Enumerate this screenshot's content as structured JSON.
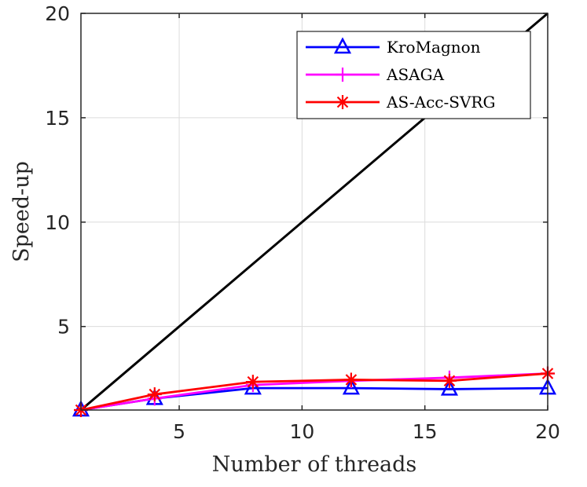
{
  "chart_data": {
    "type": "line",
    "title": "",
    "xlabel": "Number of threads",
    "ylabel": "Speed-up",
    "xlim": [
      1,
      20
    ],
    "ylim": [
      1,
      20
    ],
    "xticks": [
      5,
      10,
      15,
      20
    ],
    "yticks": [
      5,
      10,
      15,
      20
    ],
    "grid": true,
    "legend_position": "top-right",
    "reference_line": {
      "x": [
        1,
        20
      ],
      "y": [
        1,
        20
      ],
      "color": "#000000"
    },
    "series": [
      {
        "name": "KroMagnon",
        "color": "#0000ff",
        "marker": "triangle",
        "x": [
          1,
          4,
          8,
          12,
          16,
          20
        ],
        "y": [
          1.0,
          1.55,
          2.05,
          2.05,
          2.0,
          2.05
        ]
      },
      {
        "name": "ASAGA",
        "color": "#ff00ff",
        "marker": "plus",
        "x": [
          1,
          4,
          8,
          12,
          16,
          20
        ],
        "y": [
          1.0,
          1.55,
          2.2,
          2.4,
          2.55,
          2.75
        ]
      },
      {
        "name": "AS-Acc-SVRG",
        "color": "#ff0000",
        "marker": "asterisk",
        "x": [
          1,
          4,
          8,
          12,
          16,
          20
        ],
        "y": [
          1.0,
          1.75,
          2.35,
          2.45,
          2.4,
          2.75
        ]
      }
    ]
  }
}
